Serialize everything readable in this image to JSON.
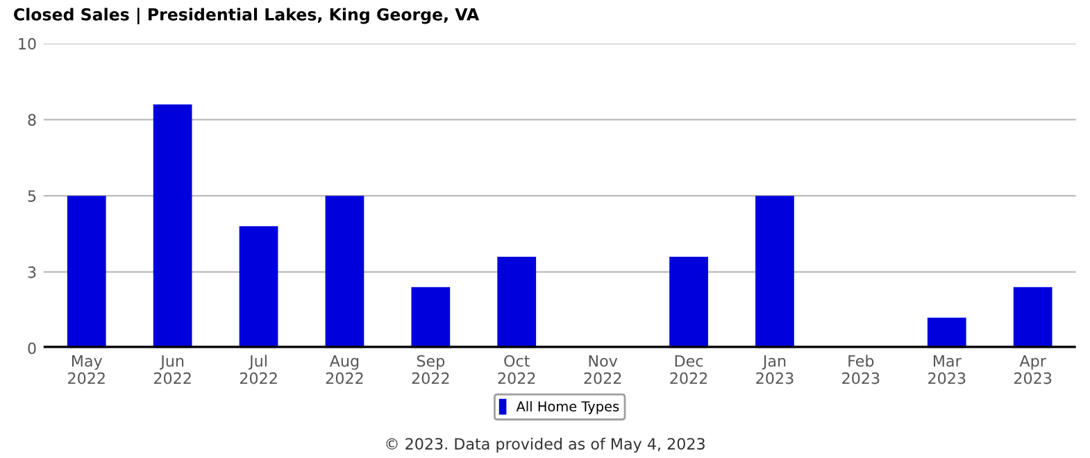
{
  "chart_data": {
    "type": "bar",
    "title": "Closed Sales | Presidential Lakes, King George, VA",
    "categories": [
      "May\n2022",
      "Jun\n2022",
      "Jul\n2022",
      "Aug\n2022",
      "Sep\n2022",
      "Oct\n2022",
      "Nov\n2022",
      "Dec\n2022",
      "Jan\n2023",
      "Feb\n2023",
      "Mar\n2023",
      "Apr\n2023"
    ],
    "series": [
      {
        "name": "All Home Types",
        "color": "#0000dd",
        "values": [
          5,
          8,
          4,
          5,
          2,
          3,
          0,
          3,
          5,
          0,
          1,
          2
        ]
      }
    ],
    "ylim": [
      0,
      10
    ],
    "yticks": [
      0,
      {
        "value": 2.5,
        "label": "3"
      },
      5,
      {
        "value": 7.5,
        "label": "8"
      },
      10
    ],
    "grid": "y",
    "legend": "bottom",
    "annotations": [
      "© 2023. Data provided as of May 4, 2023"
    ]
  }
}
